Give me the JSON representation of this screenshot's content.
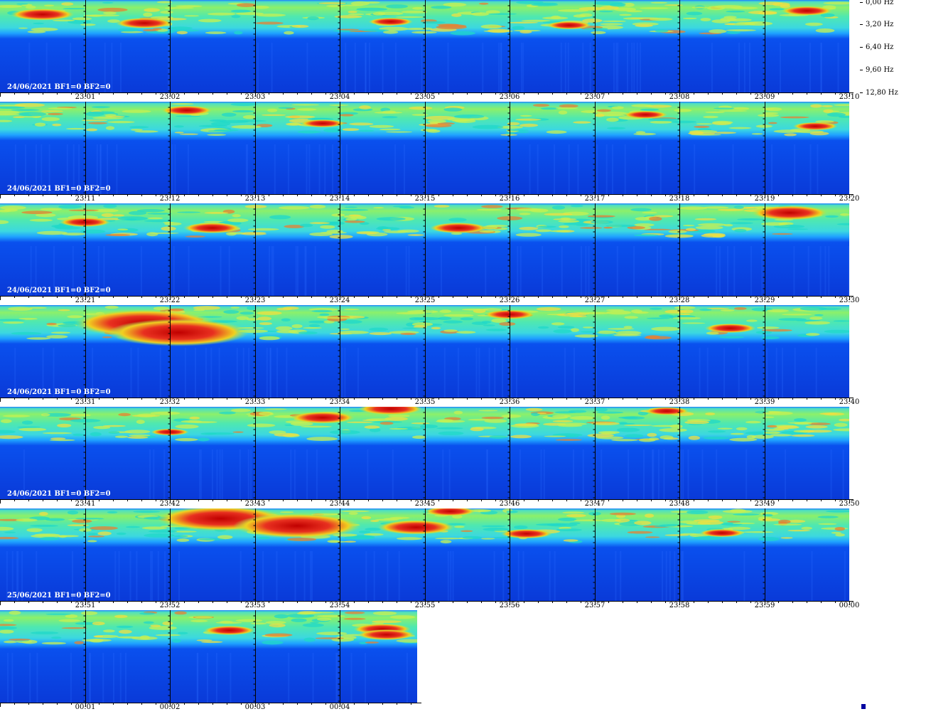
{
  "chart_data": {
    "type": "heatmap",
    "frequency_axis": {
      "labels": [
        "0,00 Hz",
        "3,20 Hz",
        "6,40 Hz",
        "9,60 Hz",
        "12,80 Hz"
      ],
      "range": [
        0.0,
        12.8
      ]
    },
    "strips": [
      {
        "date_label": "24/06/2021 BF1=0 BF2=0",
        "minutes": 10,
        "ticks": [
          "23:01",
          "23:02",
          "23:03",
          "23:04",
          "23:05",
          "23:06",
          "23:07",
          "23:08",
          "23:09",
          "23:10"
        ],
        "events": [
          [
            0.5,
            2,
            0.3
          ],
          [
            1.7,
            3.2,
            0.25
          ],
          [
            4.6,
            3,
            0.15
          ],
          [
            6.7,
            3.5,
            0.15
          ],
          [
            9.5,
            1.5,
            0.2
          ]
        ]
      },
      {
        "date_label": "24/06/2021 BF1=0 BF2=0",
        "minutes": 10,
        "ticks": [
          "23:11",
          "23:12",
          "23:13",
          "23:14",
          "23:15",
          "23:16",
          "23:17",
          "23:18",
          "23:19",
          "23:20"
        ],
        "events": [
          [
            2.2,
            1.2,
            0.2
          ],
          [
            3.8,
            3,
            0.15
          ],
          [
            7.6,
            1.8,
            0.15
          ],
          [
            9.6,
            3.4,
            0.15
          ]
        ]
      },
      {
        "date_label": "24/06/2021 BF1=0 BF2=0",
        "minutes": 10,
        "ticks": [
          "23:21",
          "23:22",
          "23:23",
          "23:24",
          "23:25",
          "23:26",
          "23:27",
          "23:28",
          "23:29",
          "23:30"
        ],
        "events": [
          [
            2.5,
            3.4,
            0.25
          ],
          [
            5.4,
            3.4,
            0.25
          ],
          [
            9.3,
            1.3,
            0.4
          ],
          [
            1.0,
            2.6,
            0.2
          ]
        ]
      },
      {
        "date_label": "24/06/2021 BF1=0 BF2=0",
        "minutes": 10,
        "ticks": [
          "23:31",
          "23:32",
          "23:33",
          "23:34",
          "23:35",
          "23:36",
          "23:37",
          "23:38",
          "23:39",
          "23:40"
        ],
        "events": [
          [
            1.7,
            2.5,
            0.9
          ],
          [
            2.1,
            3.8,
            0.9
          ],
          [
            6,
            1.3,
            0.2
          ],
          [
            8.6,
            3.2,
            0.2
          ]
        ]
      },
      {
        "date_label": "24/06/2021 BF1=0 BF2=0",
        "minutes": 10,
        "ticks": [
          "23:41",
          "23:42",
          "23:43",
          "23:44",
          "23:45",
          "23:46",
          "23:47",
          "23:48",
          "23:49",
          "23:50"
        ],
        "events": [
          [
            3.8,
            1.5,
            0.3
          ],
          [
            4.6,
            0.3,
            0.3
          ],
          [
            7.85,
            0.6,
            0.15
          ],
          [
            2.0,
            3.5,
            0.1
          ]
        ]
      },
      {
        "date_label": "25/06/2021 BF1=0 BF2=0",
        "minutes": 10,
        "ticks": [
          "23:51",
          "23:52",
          "23:53",
          "23:54",
          "23:55",
          "23:56",
          "23:57",
          "23:58",
          "23:59",
          "00:00"
        ],
        "events": [
          [
            2.6,
            1.4,
            0.8
          ],
          [
            3.5,
            2.4,
            0.8
          ],
          [
            5.3,
            0.4,
            0.2
          ],
          [
            4.9,
            2.6,
            0.4
          ],
          [
            6.2,
            3.5,
            0.2
          ],
          [
            8.5,
            3.4,
            0.15
          ]
        ]
      },
      {
        "date_label": "",
        "minutes": 5,
        "ticks": [
          "00:01",
          "00:02",
          "00:03",
          "00:04"
        ],
        "events": [
          [
            2.7,
            2.8,
            0.2
          ],
          [
            4.5,
            2.6,
            0.25
          ],
          [
            4.55,
            3.4,
            0.25
          ]
        ]
      }
    ]
  }
}
